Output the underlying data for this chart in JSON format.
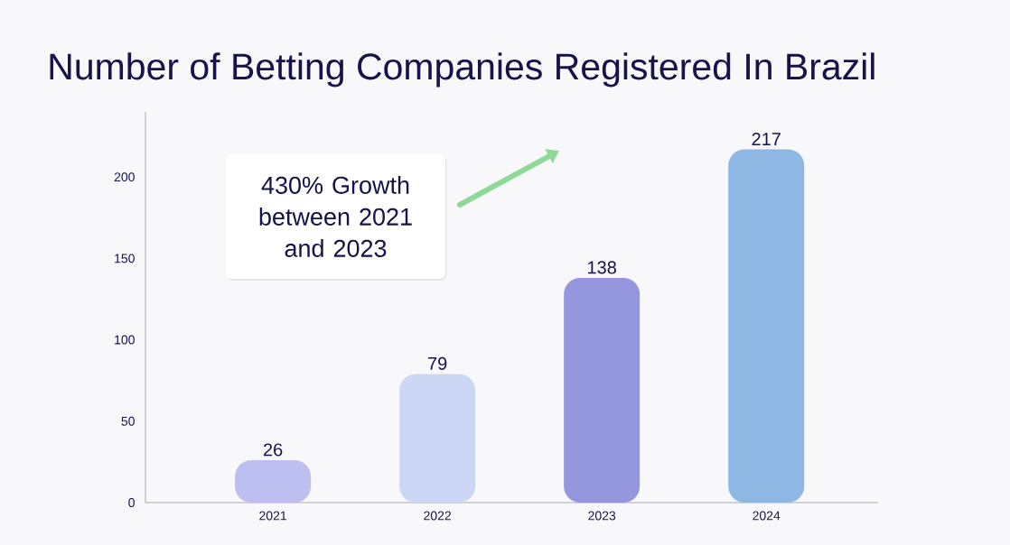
{
  "chart_data": {
    "type": "bar",
    "title": "Number of Betting Companies Registered In Brazil",
    "categories": [
      "2021",
      "2022",
      "2023",
      "2024"
    ],
    "values": [
      26,
      79,
      138,
      217
    ],
    "colors": [
      "#bdbff0",
      "#cbd7f4",
      "#9597de",
      "#8eb8e3"
    ],
    "ylim": [
      0,
      240
    ],
    "yticks": [
      0,
      50,
      100,
      150,
      200
    ],
    "data_labels": true,
    "annotations": [
      "430% Growth between 2021 and 2023"
    ]
  }
}
